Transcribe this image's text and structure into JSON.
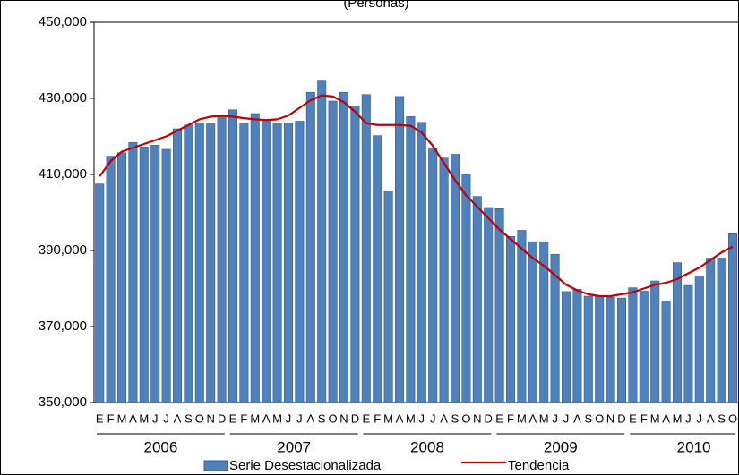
{
  "chart_data": {
    "type": "bar",
    "title": "(Personas)",
    "categories": [
      "E",
      "F",
      "M",
      "A",
      "M",
      "J",
      "J",
      "A",
      "S",
      "O",
      "N",
      "D",
      "E",
      "F",
      "M",
      "A",
      "M",
      "J",
      "J",
      "A",
      "S",
      "O",
      "N",
      "D",
      "E",
      "F",
      "M",
      "A",
      "M",
      "J",
      "J",
      "A",
      "S",
      "O",
      "N",
      "D",
      "E",
      "F",
      "M",
      "A",
      "M",
      "J",
      "J",
      "A",
      "S",
      "O",
      "N",
      "D",
      "E",
      "F",
      "M",
      "A",
      "M",
      "J",
      "J",
      "A",
      "S",
      "O"
    ],
    "years": [
      "2006",
      "2007",
      "2008",
      "2009",
      "2010"
    ],
    "series": [
      {
        "name": "Serie Desestacionalizada",
        "color": "#4f81bd",
        "values": [
          407500,
          414800,
          415700,
          418400,
          417200,
          417700,
          416600,
          422000,
          423000,
          423500,
          423300,
          425500,
          427000,
          423500,
          426000,
          424300,
          423300,
          423500,
          424000,
          431600,
          434800,
          429300,
          431600,
          428000,
          431000,
          420200,
          405700,
          430500,
          425200,
          423700,
          417000,
          414300,
          415300,
          410000,
          404200,
          401300,
          401000,
          393700,
          395300,
          392300,
          392300,
          389000,
          379200,
          379800,
          378000,
          378000,
          377700,
          377500,
          380200,
          379300,
          382000,
          376700,
          386800,
          380800,
          383300,
          388000,
          388000,
          394400
        ]
      },
      {
        "name": "Tendencia",
        "color": "#c00000",
        "values": [
          409500,
          413500,
          416000,
          417000,
          418000,
          419000,
          420000,
          421500,
          423000,
          424500,
          425200,
          425400,
          425200,
          424800,
          424500,
          424300,
          424500,
          425500,
          427500,
          429500,
          430800,
          430500,
          429000,
          426500,
          423500,
          423000,
          423000,
          423000,
          422800,
          421000,
          417500,
          413000,
          408500,
          404500,
          401500,
          398500,
          395500,
          393000,
          390500,
          388000,
          386000,
          383500,
          381000,
          379500,
          378500,
          378000,
          378000,
          378500,
          379000,
          380000,
          381000,
          381500,
          382500,
          384000,
          385500,
          387500,
          389500,
          391000
        ]
      }
    ],
    "ylim": [
      350000,
      450000
    ],
    "yticks": [
      {
        "value": 350000,
        "label": "350,000"
      },
      {
        "value": 370000,
        "label": "370,000"
      },
      {
        "value": 390000,
        "label": "390,000"
      },
      {
        "value": 410000,
        "label": "410,000"
      },
      {
        "value": 430000,
        "label": "430,000"
      },
      {
        "value": 450000,
        "label": "450,000"
      }
    ]
  }
}
